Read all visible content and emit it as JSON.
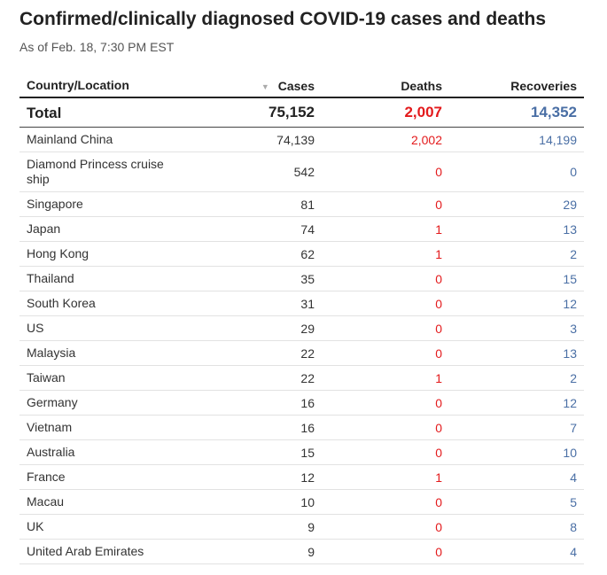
{
  "title": "Confirmed/clinically diagnosed COVID-19 cases and deaths",
  "subtitle": "As of Feb. 18, 7:30 PM EST",
  "colors": {
    "deaths": "#e31a1c",
    "recoveries": "#4a6fa5",
    "text": "#333333"
  },
  "sort_icon": "sort-down-triangle-icon",
  "chart_data": {
    "type": "table",
    "columns": [
      "Country/Location",
      "Cases",
      "Deaths",
      "Recoveries"
    ],
    "total": {
      "label": "Total",
      "cases": "75,152",
      "deaths": "2,007",
      "recoveries": "14,352"
    },
    "rows": [
      {
        "location": "Mainland China",
        "cases": "74,139",
        "deaths": "2,002",
        "recoveries": "14,199"
      },
      {
        "location": "Diamond Princess cruise ship",
        "cases": "542",
        "deaths": "0",
        "recoveries": "0"
      },
      {
        "location": "Singapore",
        "cases": "81",
        "deaths": "0",
        "recoveries": "29"
      },
      {
        "location": "Japan",
        "cases": "74",
        "deaths": "1",
        "recoveries": "13"
      },
      {
        "location": "Hong Kong",
        "cases": "62",
        "deaths": "1",
        "recoveries": "2"
      },
      {
        "location": "Thailand",
        "cases": "35",
        "deaths": "0",
        "recoveries": "15"
      },
      {
        "location": "South Korea",
        "cases": "31",
        "deaths": "0",
        "recoveries": "12"
      },
      {
        "location": "US",
        "cases": "29",
        "deaths": "0",
        "recoveries": "3"
      },
      {
        "location": "Malaysia",
        "cases": "22",
        "deaths": "0",
        "recoveries": "13"
      },
      {
        "location": "Taiwan",
        "cases": "22",
        "deaths": "1",
        "recoveries": "2"
      },
      {
        "location": "Germany",
        "cases": "16",
        "deaths": "0",
        "recoveries": "12"
      },
      {
        "location": "Vietnam",
        "cases": "16",
        "deaths": "0",
        "recoveries": "7"
      },
      {
        "location": "Australia",
        "cases": "15",
        "deaths": "0",
        "recoveries": "10"
      },
      {
        "location": "France",
        "cases": "12",
        "deaths": "1",
        "recoveries": "4"
      },
      {
        "location": "Macau",
        "cases": "10",
        "deaths": "0",
        "recoveries": "5"
      },
      {
        "location": "UK",
        "cases": "9",
        "deaths": "0",
        "recoveries": "8"
      },
      {
        "location": "United Arab Emirates",
        "cases": "9",
        "deaths": "0",
        "recoveries": "4"
      }
    ]
  }
}
